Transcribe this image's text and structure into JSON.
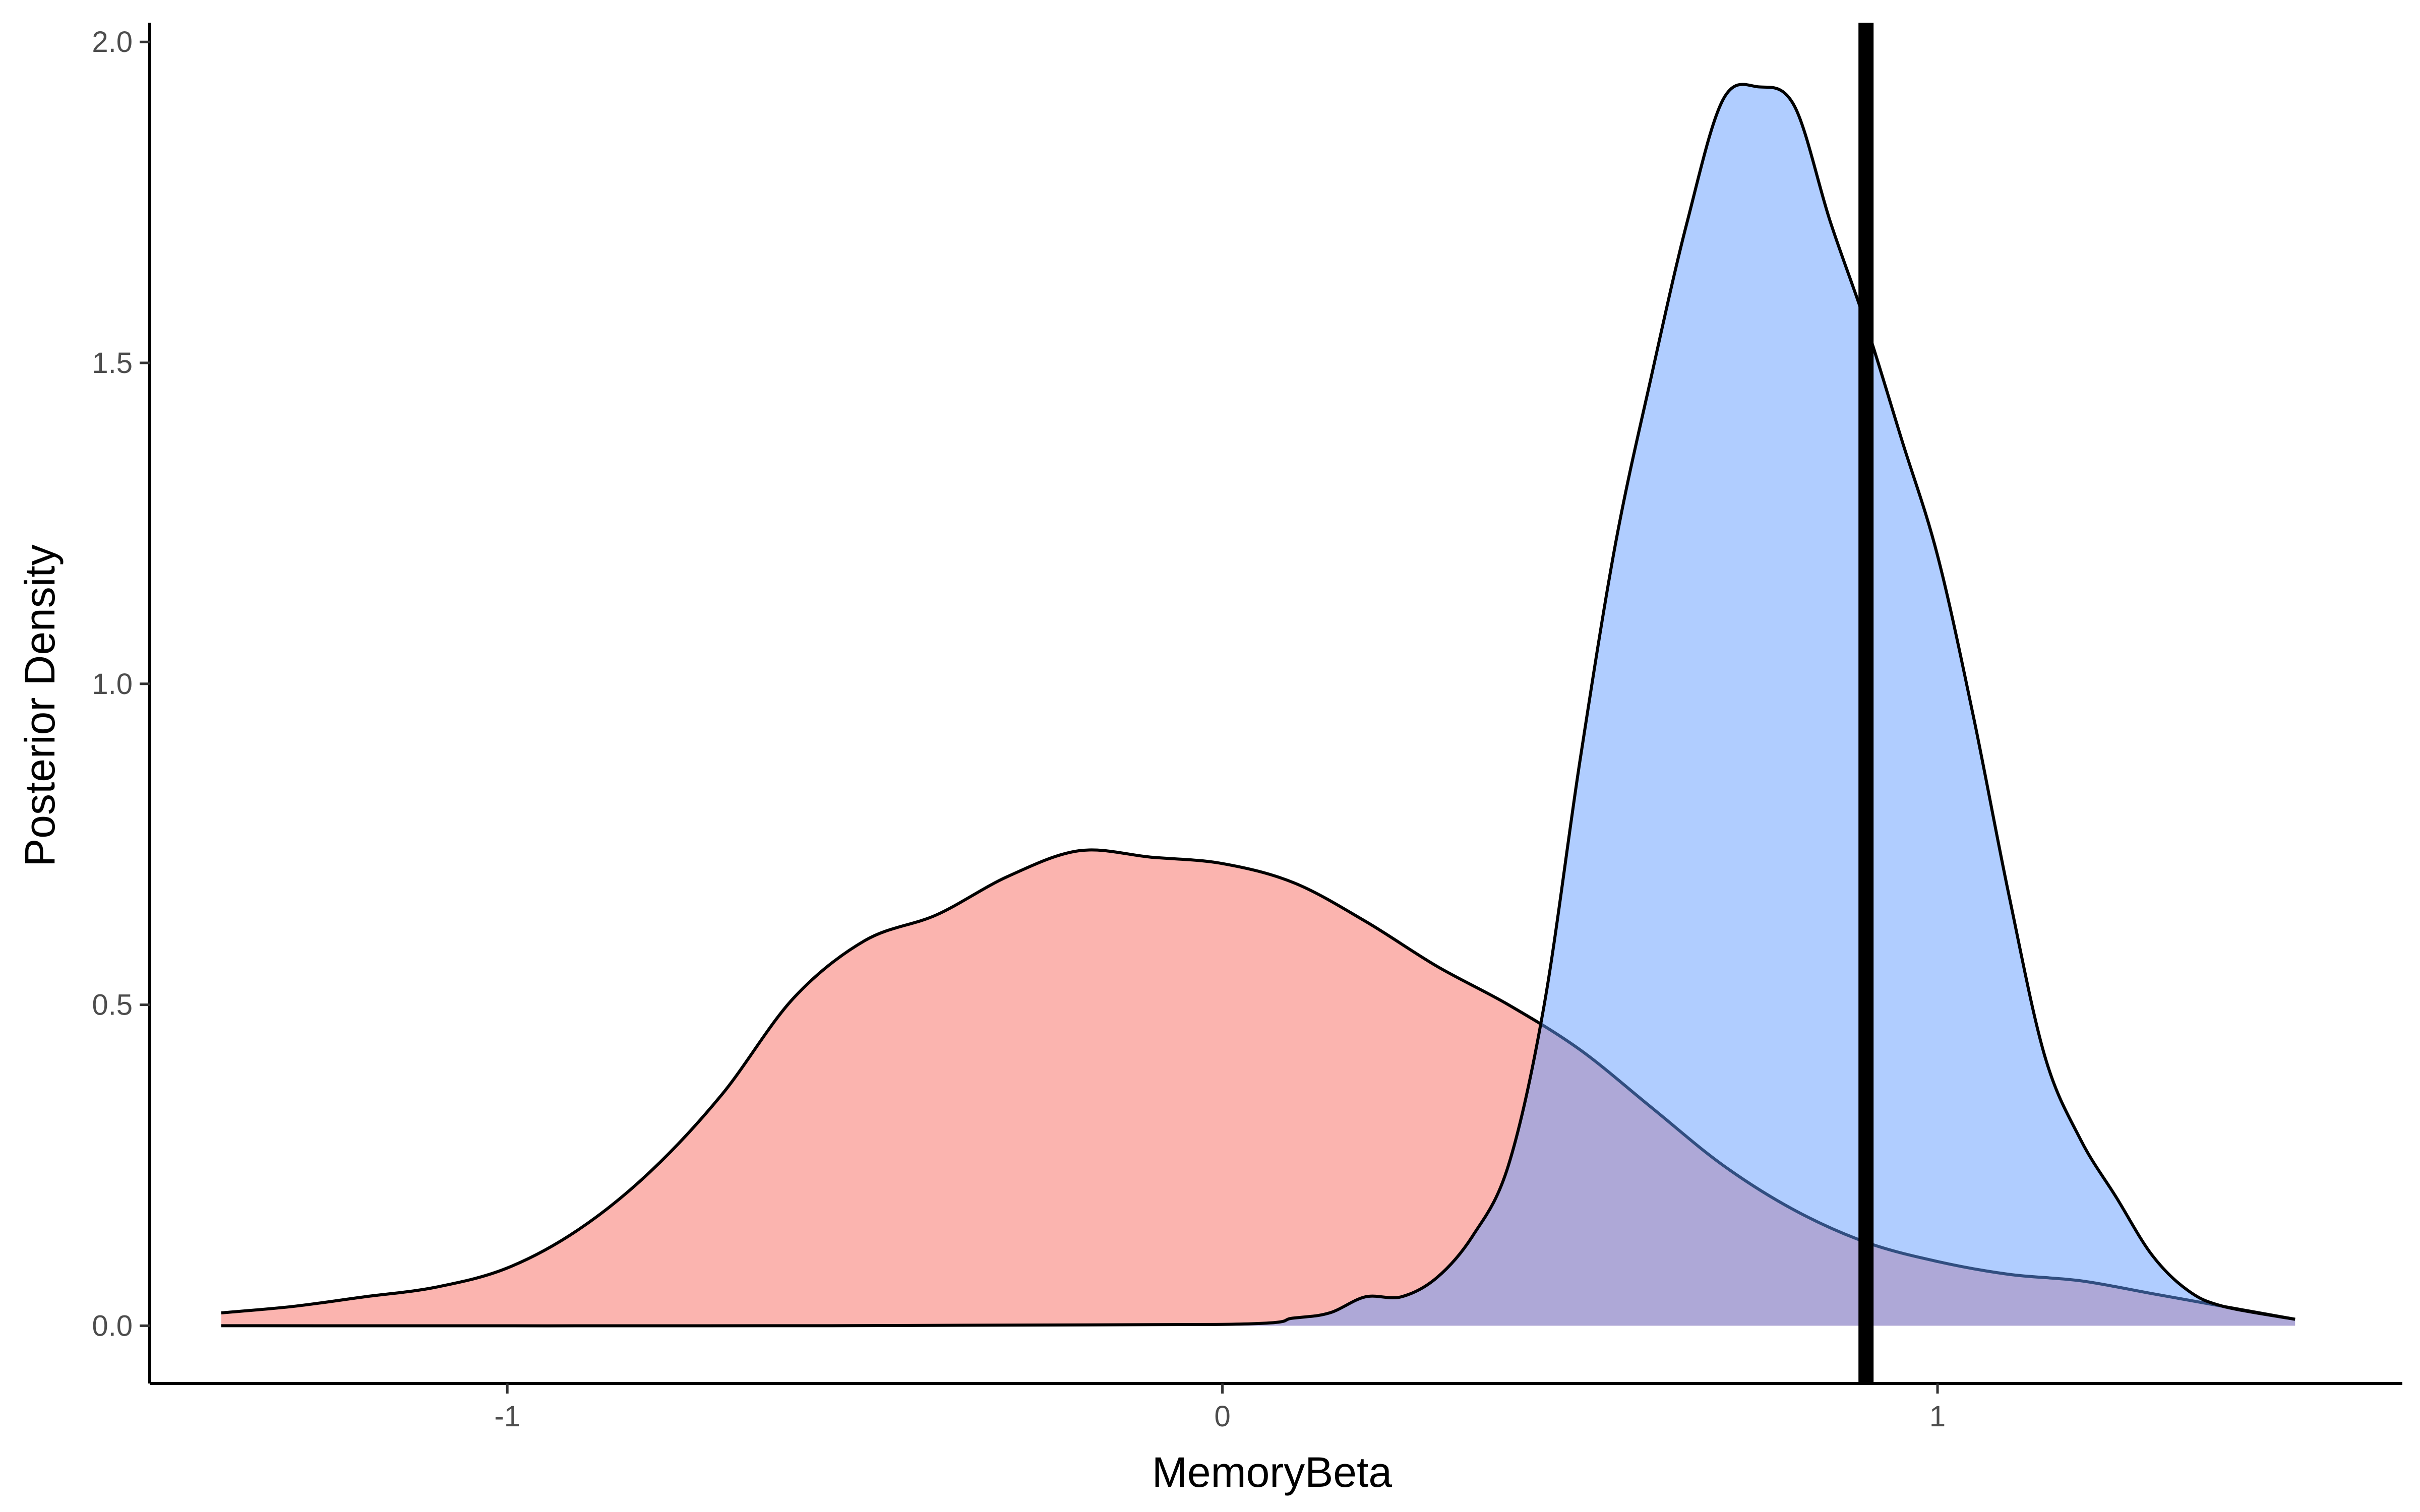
{
  "chart_data": {
    "type": "area",
    "title": "",
    "xlabel": "MemoryBeta",
    "ylabel": "Posterior Density",
    "xlim": [
      -1.5,
      1.65
    ],
    "ylim": [
      -0.09,
      2.03
    ],
    "xticks": [
      -1,
      0,
      1
    ],
    "xtick_labels": [
      "-1",
      "0",
      "1"
    ],
    "yticks": [
      0.0,
      0.5,
      1.0,
      1.5,
      2.0
    ],
    "ytick_labels": [
      "0.0",
      "0.5",
      "1.0",
      "1.5",
      "2.0"
    ],
    "grid": false,
    "legend": "none",
    "vline": {
      "x": 0.9,
      "color": "#000000"
    },
    "series": [
      {
        "fill": "#F8766D",
        "fill_opacity": 0.55,
        "stroke": "#000000",
        "x": [
          -1.4,
          -1.3,
          -1.2,
          -1.1,
          -1.0,
          -0.9,
          -0.8,
          -0.7,
          -0.6,
          -0.5,
          -0.4,
          -0.3,
          -0.2,
          -0.1,
          0.0,
          0.1,
          0.2,
          0.3,
          0.4,
          0.5,
          0.6,
          0.7,
          0.8,
          0.9,
          1.0,
          1.1,
          1.2,
          1.3,
          1.4,
          1.5
        ],
        "y": [
          0.02,
          0.03,
          0.045,
          0.06,
          0.09,
          0.15,
          0.24,
          0.36,
          0.51,
          0.6,
          0.64,
          0.7,
          0.74,
          0.73,
          0.72,
          0.69,
          0.63,
          0.56,
          0.5,
          0.43,
          0.34,
          0.25,
          0.18,
          0.13,
          0.1,
          0.08,
          0.07,
          0.05,
          0.03,
          0.01
        ]
      },
      {
        "fill": "#619CFF",
        "fill_opacity": 0.5,
        "stroke": "#000000",
        "x": [
          -1.4,
          -0.6,
          0.0,
          0.1,
          0.15,
          0.2,
          0.25,
          0.3,
          0.35,
          0.4,
          0.45,
          0.5,
          0.55,
          0.6,
          0.65,
          0.7,
          0.75,
          0.8,
          0.85,
          0.9,
          0.95,
          1.0,
          1.05,
          1.1,
          1.15,
          1.2,
          1.25,
          1.3,
          1.35,
          1.4,
          1.5
        ],
        "y": [
          0.0,
          0.0,
          0.002,
          0.012,
          0.02,
          0.045,
          0.045,
          0.075,
          0.14,
          0.25,
          0.5,
          0.88,
          1.22,
          1.48,
          1.72,
          1.91,
          1.93,
          1.9,
          1.72,
          1.56,
          1.38,
          1.2,
          0.95,
          0.67,
          0.42,
          0.29,
          0.2,
          0.11,
          0.055,
          0.03,
          0.01
        ]
      }
    ]
  }
}
